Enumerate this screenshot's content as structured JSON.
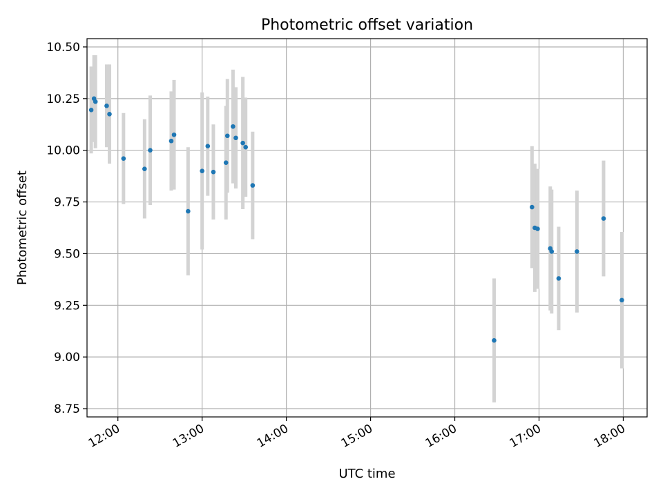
{
  "chart_data": {
    "type": "scatter",
    "title": "Photometric offset variation",
    "xlabel": "UTC time",
    "ylabel": "Photometric offset",
    "x_ticks": [
      "12:00",
      "13:00",
      "14:00",
      "15:00",
      "16:00",
      "17:00",
      "18:00"
    ],
    "y_ticks": [
      "8.75",
      "9.00",
      "9.25",
      "9.50",
      "9.75",
      "10.00",
      "10.25",
      "10.50"
    ],
    "xlim": [
      "11:38",
      "18:17"
    ],
    "ylim": [
      8.71,
      10.54
    ],
    "grid": true,
    "marker_color": "#1f77b4",
    "errorbar_color": "#d3d3d3",
    "points": [
      {
        "time": "11:41",
        "value": 10.195,
        "err": 0.21
      },
      {
        "time": "11:43",
        "value": 10.25,
        "err": 0.21
      },
      {
        "time": "11:44",
        "value": 10.235,
        "err": 0.225
      },
      {
        "time": "11:52",
        "value": 10.215,
        "err": 0.2
      },
      {
        "time": "11:54",
        "value": 10.175,
        "err": 0.24
      },
      {
        "time": "12:04",
        "value": 9.96,
        "err": 0.22
      },
      {
        "time": "12:19",
        "value": 9.91,
        "err": 0.24
      },
      {
        "time": "12:23",
        "value": 10.0,
        "err": 0.265
      },
      {
        "time": "12:38",
        "value": 10.045,
        "err": 0.24
      },
      {
        "time": "12:40",
        "value": 10.075,
        "err": 0.265
      },
      {
        "time": "12:50",
        "value": 9.705,
        "err": 0.31
      },
      {
        "time": "13:00",
        "value": 9.9,
        "err": 0.38
      },
      {
        "time": "13:04",
        "value": 10.02,
        "err": 0.24
      },
      {
        "time": "13:08",
        "value": 9.895,
        "err": 0.23
      },
      {
        "time": "13:17",
        "value": 9.94,
        "err": 0.275
      },
      {
        "time": "13:18",
        "value": 10.07,
        "err": 0.275
      },
      {
        "time": "13:22",
        "value": 10.115,
        "err": 0.275
      },
      {
        "time": "13:24",
        "value": 10.06,
        "err": 0.245
      },
      {
        "time": "13:29",
        "value": 10.035,
        "err": 0.32
      },
      {
        "time": "13:31",
        "value": 10.015,
        "err": 0.24
      },
      {
        "time": "13:36",
        "value": 9.83,
        "err": 0.26
      },
      {
        "time": "16:28",
        "value": 9.08,
        "err": 0.3
      },
      {
        "time": "16:55",
        "value": 9.725,
        "err": 0.295
      },
      {
        "time": "16:57",
        "value": 9.625,
        "err": 0.31
      },
      {
        "time": "16:59",
        "value": 9.62,
        "err": 0.29
      },
      {
        "time": "17:08",
        "value": 9.525,
        "err": 0.3
      },
      {
        "time": "17:09",
        "value": 9.51,
        "err": 0.3
      },
      {
        "time": "17:14",
        "value": 9.38,
        "err": 0.25
      },
      {
        "time": "17:27",
        "value": 9.51,
        "err": 0.295
      },
      {
        "time": "17:46",
        "value": 9.67,
        "err": 0.28
      },
      {
        "time": "17:59",
        "value": 9.275,
        "err": 0.33
      }
    ]
  }
}
